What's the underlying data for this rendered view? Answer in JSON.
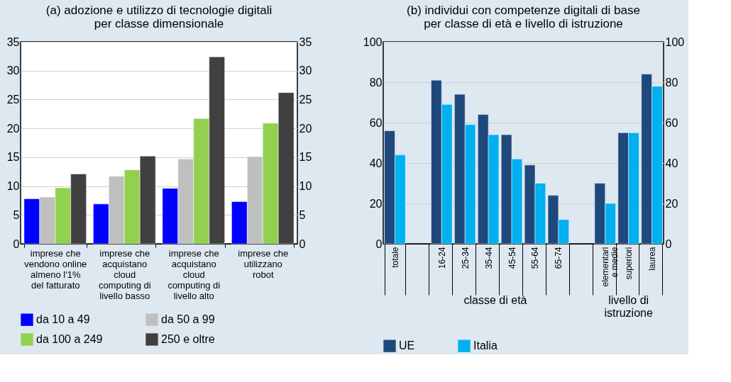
{
  "chart_data": [
    {
      "type": "bar",
      "title": "(a) adozione e utilizzo di tecnologie digitali per classe dimensionale",
      "categories": [
        "imprese che vendono online almeno l'1% del fatturato",
        "imprese che acquistano cloud computing di livello basso",
        "imprese che acquistano cloud computing di livello alto",
        "imprese che utilizzano robot"
      ],
      "series": [
        {
          "name": "da 10 a 49",
          "color": "#0000ff",
          "values": [
            7.8,
            6.9,
            9.6,
            7.3
          ]
        },
        {
          "name": "da 50 a 99",
          "color": "#bfbfbf",
          "values": [
            8.1,
            11.7,
            14.7,
            15.1
          ]
        },
        {
          "name": "da 100 a 249",
          "color": "#92d050",
          "values": [
            9.7,
            12.8,
            21.7,
            20.9
          ]
        },
        {
          "name": "250 e oltre",
          "color": "#404040",
          "values": [
            12.1,
            15.2,
            32.4,
            26.2
          ]
        }
      ],
      "ylim": [
        0,
        35
      ],
      "yticks": [
        0,
        5,
        10,
        15,
        20,
        25,
        30,
        35
      ],
      "y2lim": [
        0,
        35
      ],
      "y2ticks": [
        0,
        5,
        10,
        15,
        20,
        25,
        30,
        35
      ],
      "grid": "y",
      "legend": "bottom"
    },
    {
      "type": "bar",
      "title": "(b) individui con competenze digitali di base per classe di età e livello di istruzione",
      "categories": [
        "totale",
        null,
        "16-24",
        "25-34",
        "35-44",
        "45-54",
        "55-64",
        "65-74",
        null,
        "elementari e medie",
        "superiori",
        "laurea"
      ],
      "series": [
        {
          "name": "UE",
          "color": "#1f497d",
          "values": [
            56,
            null,
            81,
            74,
            64,
            54,
            39,
            24,
            null,
            30,
            55,
            84
          ]
        },
        {
          "name": "Italia",
          "color": "#00b0f0",
          "values": [
            44,
            null,
            69,
            59,
            54,
            42,
            30,
            12,
            null,
            20,
            55,
            78
          ]
        }
      ],
      "annotations": [
        "classe di età",
        "livello di istruzione"
      ],
      "ylim": [
        0,
        100
      ],
      "yticks": [
        0,
        20,
        40,
        60,
        80,
        100
      ],
      "y2lim": [
        0,
        100
      ],
      "y2ticks": [
        0,
        20,
        40,
        60,
        80,
        100
      ],
      "grid": "y",
      "legend": "bottom"
    }
  ]
}
